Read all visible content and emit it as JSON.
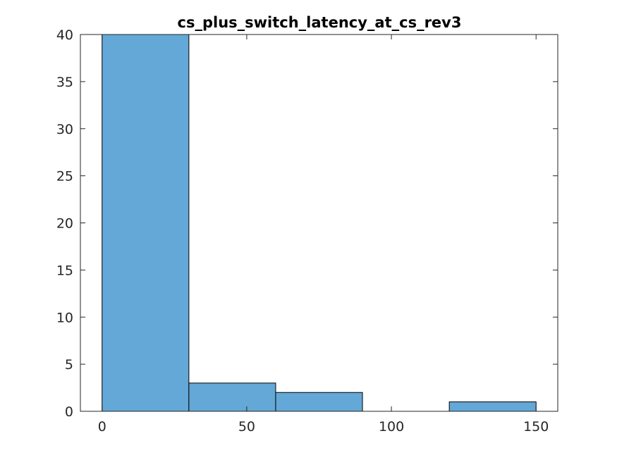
{
  "chart_data": {
    "type": "bar",
    "title": "cs_plus_switch_latency_at_cs_rev3",
    "xlabel": "",
    "ylabel": "",
    "bins": [
      {
        "start": 0,
        "end": 30,
        "value": 40
      },
      {
        "start": 30,
        "end": 60,
        "value": 3
      },
      {
        "start": 60,
        "end": 90,
        "value": 2
      },
      {
        "start": 90,
        "end": 120,
        "value": 0
      },
      {
        "start": 120,
        "end": 150,
        "value": 1
      }
    ],
    "xlim": [
      -7.5,
      157.5
    ],
    "ylim": [
      0,
      40
    ],
    "xticks": [
      0,
      50,
      100,
      150
    ],
    "yticks": [
      0,
      5,
      10,
      15,
      20,
      25,
      30,
      35,
      40
    ],
    "grid": false,
    "colors": {
      "bar": "#63a8d7",
      "edge": "#000000"
    }
  }
}
